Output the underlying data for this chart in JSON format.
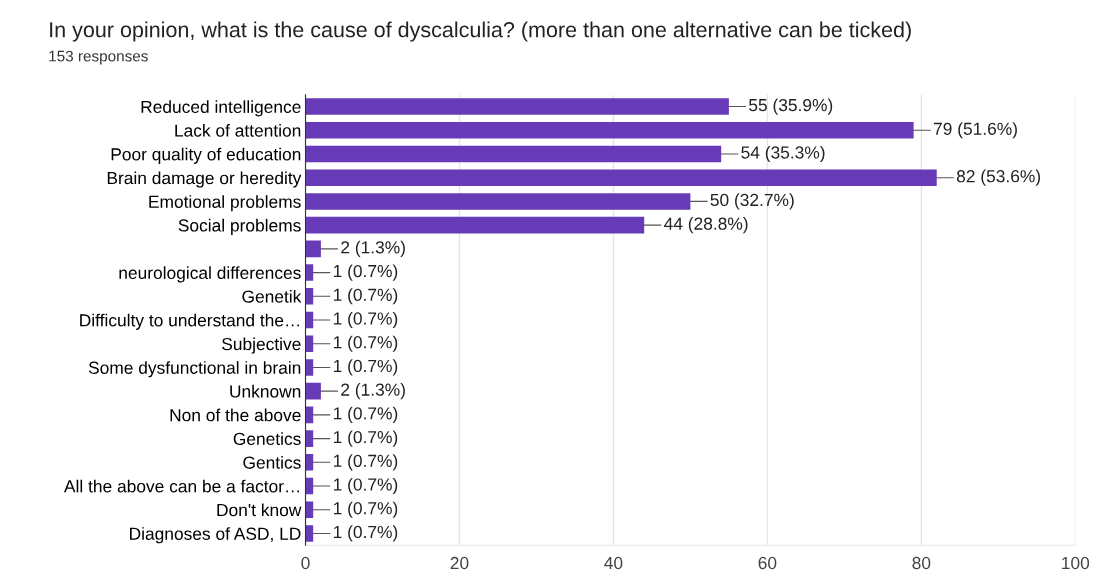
{
  "chart_data": {
    "type": "bar",
    "orientation": "horizontal",
    "title": "In your opinion, what is the cause of dyscalculia? (more than one alternative can be ticked)",
    "subtitle": "153 responses",
    "categories": [
      "Reduced intelligence",
      "Lack of attention",
      "Poor quality of education",
      "Brain damage or heredity",
      "Emotional problems",
      "Social problems",
      null,
      "neurological differences",
      "Genetik",
      "Difficulty to understand the…",
      "Subjective",
      "Some dysfunctional in brain",
      "Unknown",
      "Non of the above",
      "Genetics",
      "Gentics",
      "All the above can be a factor…",
      "Don't know",
      "Diagnoses of ASD, LD"
    ],
    "values": [
      55,
      79,
      54,
      82,
      50,
      44,
      2,
      1,
      1,
      1,
      1,
      1,
      2,
      1,
      1,
      1,
      1,
      1,
      1
    ],
    "value_labels": [
      "55 (35.9%)",
      "79 (51.6%)",
      "54 (35.3%)",
      "82 (53.6%)",
      "50 (32.7%)",
      "44 (28.8%)",
      "2 (1.3%)",
      "1 (0.7%)",
      "1 (0.7%)",
      "1 (0.7%)",
      "1 (0.7%)",
      "1 (0.7%)",
      "2 (1.3%)",
      "1 (0.7%)",
      "1 (0.7%)",
      "1 (0.7%)",
      "1 (0.7%)",
      "1 (0.7%)",
      "1 (0.7%)"
    ],
    "color": "#673ab7",
    "xlim": [
      0,
      100
    ],
    "xticks": [
      0,
      20,
      40,
      60,
      80,
      100
    ],
    "grid": "x"
  }
}
